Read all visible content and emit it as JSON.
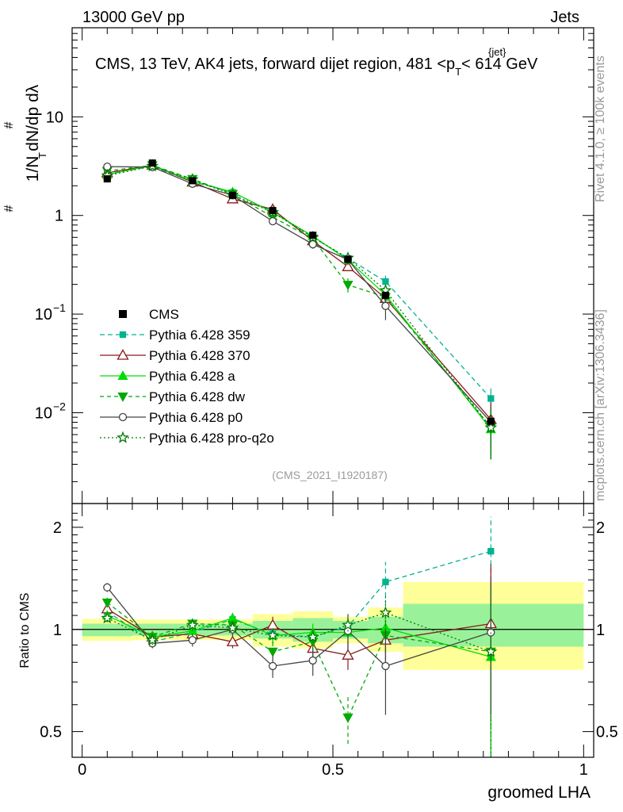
{
  "header": {
    "left": "13000 GeV pp",
    "right": "Jets"
  },
  "side_text": {
    "rivet": "Rivet 4.1.0, ≥ 100k events",
    "site": "mcplots.cern.ch [arXiv:1306.3436]"
  },
  "watermark": "(CMS_2021_I1920187)",
  "chart_data": {
    "type": "line",
    "title": "CMS, 13 TeV, AK4 jets, forward dijet region, 481 <p_T^{jet}< 614 GeV",
    "title_parts": {
      "main": "CMS, 13 TeV, AK4 jets, forward dijet region, 481 <p",
      "sub": "T",
      "sup": "{jet}",
      "tail": "< 614 GeV"
    },
    "xlabel": "groomed LHA",
    "ylabel": "1/N dN/dp_T dλ",
    "ylabel_ratio": "Ratio to CMS",
    "xlim": [
      -0.02,
      1.02
    ],
    "ylim": [
      0.0012,
      80
    ],
    "ylim_ratio": [
      0.42,
      2.35
    ],
    "x_ticks": [
      0,
      0.5,
      1
    ],
    "x_tick_labels": [
      "0",
      "0.5",
      "1"
    ],
    "y_ticks": [
      0.01,
      0.1,
      1,
      10
    ],
    "y_tick_labels": [
      {
        "base": "10",
        "exp": "−2"
      },
      {
        "base": "10",
        "exp": "−1"
      },
      {
        "base": "1",
        "exp": ""
      },
      {
        "base": "10",
        "exp": ""
      }
    ],
    "ratio_ticks": [
      0.5,
      1,
      2
    ],
    "ratio_tick_labels": [
      "0.5",
      "1",
      "2"
    ],
    "x": [
      0.05,
      0.14,
      0.22,
      0.3,
      0.38,
      0.46,
      0.53,
      0.605,
      0.815
    ],
    "bin_edges": [
      0,
      0.1,
      0.18,
      0.26,
      0.34,
      0.42,
      0.5,
      0.57,
      0.64,
      1.0
    ],
    "reference": {
      "name": "CMS",
      "values": [
        2.35,
        3.4,
        2.25,
        1.6,
        1.12,
        0.63,
        0.36,
        0.155,
        0.0082
      ]
    },
    "band_inner": [
      [
        0.955,
        1.04
      ],
      [
        0.96,
        1.04
      ],
      [
        0.96,
        1.04
      ],
      [
        0.96,
        1.04
      ],
      [
        0.94,
        1.06
      ],
      [
        0.92,
        1.08
      ],
      [
        0.94,
        1.06
      ],
      [
        0.91,
        1.09
      ],
      [
        0.89,
        1.19
      ]
    ],
    "band_outer": [
      [
        0.925,
        1.075
      ],
      [
        0.93,
        1.07
      ],
      [
        0.93,
        1.07
      ],
      [
        0.93,
        1.07
      ],
      [
        0.89,
        1.11
      ],
      [
        0.88,
        1.13
      ],
      [
        0.91,
        1.09
      ],
      [
        0.86,
        1.16
      ],
      [
        0.76,
        1.38
      ]
    ],
    "series": [
      {
        "name": "Pythia 6.428 359",
        "color": "#00b38f",
        "dash": "6,4",
        "marker": "square",
        "ratio": [
          1.13,
          0.92,
          0.98,
          1.07,
          0.97,
          0.95,
          1.02,
          1.38,
          1.7
        ],
        "err": [
          0.03,
          0.03,
          0.03,
          0.04,
          0.05,
          0.06,
          0.06,
          0.2,
          0.45
        ]
      },
      {
        "name": "Pythia 6.428 370",
        "color": "#8b1a1a",
        "dash": "",
        "marker": "triangle-open",
        "ratio": [
          1.15,
          0.95,
          0.97,
          0.92,
          1.03,
          0.88,
          0.84,
          0.93,
          1.04
        ],
        "err": [
          0.04,
          0.03,
          0.04,
          0.04,
          0.06,
          0.07,
          0.08,
          0.16,
          0.52
        ]
      },
      {
        "name": "Pythia 6.428 a",
        "color": "#00dd00",
        "dash": "",
        "marker": "triangle",
        "ratio": [
          1.1,
          0.95,
          0.99,
          1.08,
          0.96,
          0.98,
          0.98,
          1.01,
          0.83
        ],
        "err": [
          0.03,
          0.03,
          0.03,
          0.04,
          0.05,
          0.06,
          0.06,
          0.15,
          0.4
        ]
      },
      {
        "name": "Pythia 6.428 dw",
        "color": "#00aa00",
        "dash": "5,4",
        "marker": "triangle-down",
        "ratio": [
          1.2,
          0.95,
          1.04,
          1.03,
          0.86,
          0.92,
          0.55,
          0.96,
          0.86
        ],
        "err": [
          0.04,
          0.03,
          0.04,
          0.04,
          0.05,
          0.06,
          0.09,
          0.15,
          0.45
        ]
      },
      {
        "name": "Pythia 6.428 p0",
        "color": "#444444",
        "dash": "",
        "marker": "circle-open",
        "ratio": [
          1.33,
          0.91,
          0.93,
          1.0,
          0.78,
          0.81,
          0.99,
          0.78,
          0.98
        ],
        "err": [
          0.04,
          0.03,
          0.04,
          0.05,
          0.06,
          0.08,
          0.12,
          0.22,
          0.42
        ]
      },
      {
        "name": "Pythia 6.428 pro-q2o",
        "color": "#007a00",
        "dash": "2,3",
        "marker": "star-open",
        "ratio": [
          1.08,
          0.93,
          1.03,
          1.01,
          0.96,
          0.95,
          1.03,
          1.12,
          0.86
        ],
        "err": [
          0.03,
          0.03,
          0.04,
          0.04,
          0.05,
          0.06,
          0.07,
          0.15,
          0.45
        ]
      }
    ]
  }
}
